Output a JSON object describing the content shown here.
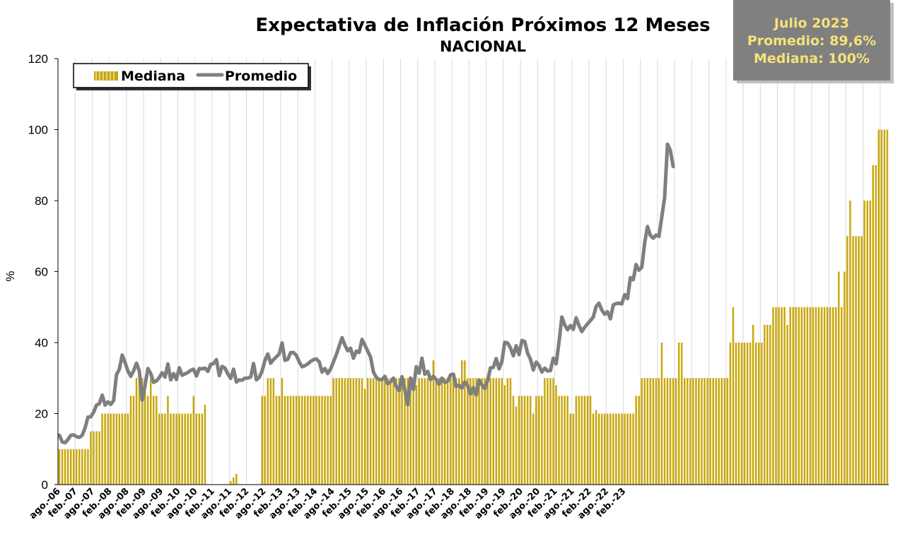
{
  "chart_data": {
    "type": "bar+line",
    "title": "Expectativa de Inflación Próximos 12 Meses",
    "subtitle": "NACIONAL",
    "ylabel": "%",
    "ylim": [
      0,
      120
    ],
    "yticks": [
      0,
      20,
      40,
      60,
      80,
      100,
      120
    ],
    "grid": "vertical",
    "legend": {
      "position": "top-left",
      "entries": [
        "Mediana",
        "Promedio"
      ]
    },
    "info_box": [
      "Julio 2023",
      "Promedio: 89,6%",
      "Mediana: 100%"
    ],
    "x_tick_labels": [
      "ago.-06",
      "feb.-07",
      "ago.-07",
      "feb.-08",
      "ago.-08",
      "feb.-09",
      "ago.-09",
      "feb.-10",
      "ago.-10",
      "feb.-11",
      "ago.-11",
      "feb.-12",
      "ago.-12",
      "feb.-13",
      "ago.-13",
      "feb.-14",
      "ago.-14",
      "feb.-15",
      "ago.-15",
      "feb.-16",
      "ago.-16",
      "feb.-17",
      "ago.-17",
      "feb.-18",
      "ago.-18",
      "feb.-19",
      "ago.-19",
      "feb.-20",
      "ago.-20",
      "feb.-21",
      "ago.-21",
      "feb.-22",
      "ago.-22",
      "feb.-23"
    ],
    "months_start": "ago.-06",
    "months_end": "jul.-23",
    "series": [
      {
        "name": "Mediana",
        "kind": "bar",
        "color": "#c9a70c",
        "values": [
          10,
          10,
          10,
          10,
          10,
          10,
          10,
          10,
          10,
          10,
          10,
          15,
          15,
          15,
          15,
          20,
          20,
          20,
          20,
          20,
          20,
          20,
          20,
          20,
          20,
          25,
          25,
          30,
          30,
          30,
          30,
          25,
          30,
          25,
          25,
          20,
          20,
          20,
          25,
          20,
          20,
          20,
          20,
          20,
          20,
          20,
          20,
          25,
          20,
          20,
          20,
          22.5,
          null,
          null,
          null,
          null,
          null,
          null,
          null,
          null,
          1,
          2,
          3,
          null,
          null,
          null,
          null,
          null,
          null,
          null,
          null,
          25,
          25,
          30,
          30,
          30,
          25,
          25,
          30,
          25,
          25,
          25,
          25,
          25,
          25,
          25,
          25,
          25,
          25,
          25,
          25,
          25,
          25,
          25,
          25,
          25,
          30,
          30,
          30,
          30,
          30,
          30,
          30,
          30,
          30,
          30,
          30,
          27,
          30,
          30,
          30,
          30,
          30,
          30,
          30,
          30,
          30,
          30,
          30,
          30,
          30,
          30,
          30,
          30,
          30,
          28,
          30,
          30,
          30,
          30,
          30,
          35,
          30,
          30,
          30,
          30,
          30,
          30,
          30,
          30,
          30,
          35,
          35,
          30,
          30,
          30,
          30,
          30,
          30,
          30,
          30,
          30,
          30,
          30,
          30,
          30,
          28,
          30,
          30,
          25,
          22,
          25,
          25,
          25,
          25,
          25,
          20,
          25,
          25,
          25,
          30,
          30,
          30,
          30,
          28,
          25,
          25,
          25,
          25,
          20,
          20,
          25,
          25,
          25,
          25,
          25,
          25,
          20,
          21,
          20,
          20,
          20,
          20,
          20,
          20,
          20,
          20,
          20,
          20,
          20,
          20,
          20,
          25,
          25,
          30,
          30,
          30,
          30,
          30,
          30,
          30,
          40,
          30,
          30,
          30,
          30,
          30,
          40,
          40,
          30,
          30,
          30,
          30,
          30,
          30,
          30,
          30,
          30,
          30,
          30,
          30,
          30,
          30,
          30,
          30,
          40,
          50,
          40,
          40,
          40,
          40,
          40,
          40,
          45,
          40,
          40,
          40,
          45,
          45,
          45,
          50,
          50,
          50,
          50,
          50,
          45,
          50,
          50,
          50,
          50,
          50,
          50,
          50,
          50,
          50,
          50,
          50,
          50,
          50,
          50,
          50,
          50,
          50,
          60,
          50,
          60,
          70,
          80,
          70,
          70,
          70,
          70,
          80,
          80,
          80,
          90,
          90,
          100,
          100,
          100,
          100
        ]
      },
      {
        "name": "Promedio",
        "kind": "line",
        "color": "#7f7f7f",
        "values": [
          13.9,
          12.0,
          11.8,
          12.7,
          13.9,
          14.0,
          13.5,
          13.3,
          13.9,
          16.0,
          19.0,
          19.1,
          20.4,
          22.4,
          22.8,
          25.2,
          22.4,
          23.3,
          22.6,
          23.7,
          31.0,
          32.5,
          36.5,
          34.4,
          32.0,
          30.5,
          32.1,
          34.2,
          32.0,
          23.8,
          28.0,
          32.7,
          31.3,
          28.8,
          29.2,
          30.2,
          31.5,
          30.3,
          34.0,
          29.5,
          31.3,
          29.6,
          32.9,
          30.8,
          31.2,
          31.6,
          32.2,
          32.5,
          30.6,
          32.7,
          32.6,
          32.8,
          31.9,
          33.9,
          34.1,
          35.2,
          30.7,
          33.3,
          32.8,
          31.2,
          29.9,
          32.5,
          28.9,
          29.5,
          29.4,
          30.0,
          30.0,
          30.3,
          34.1,
          29.5,
          30.2,
          32.0,
          35.0,
          36.8,
          34.2,
          35.2,
          36.0,
          36.8,
          39.9,
          35.0,
          35.3,
          37.2,
          37.2,
          36.4,
          34.6,
          33.2,
          33.5,
          34.0,
          34.7,
          35.2,
          35.4,
          34.6,
          31.7,
          32.7,
          31.3,
          32.6,
          34.6,
          36.6,
          39.0,
          41.4,
          39.3,
          37.7,
          38.4,
          35.6,
          37.6,
          37.2,
          40.9,
          39.3,
          37.6,
          35.9,
          31.7,
          30.2,
          29.6,
          29.6,
          30.5,
          28.4,
          29.0,
          30.0,
          27.7,
          26.5,
          30.4,
          26.7,
          22.5,
          30.0,
          26.8,
          33.2,
          31.4,
          35.6,
          31.1,
          31.9,
          29.6,
          30.5,
          29.6,
          28.3,
          30.0,
          28.8,
          29.1,
          30.9,
          31.1,
          27.6,
          28.0,
          27.2,
          28.9,
          27.9,
          25.5,
          27.3,
          25.3,
          29.4,
          28.1,
          27.1,
          29.3,
          32.9,
          33.0,
          35.5,
          32.6,
          34.7,
          40.1,
          39.9,
          38.5,
          36.3,
          39.1,
          36.6,
          40.6,
          40.3,
          37.0,
          35.3,
          32.3,
          34.5,
          33.6,
          31.7,
          32.8,
          32.0,
          32.1,
          35.6,
          34.0,
          40.1,
          47.2,
          45.0,
          43.6,
          44.8,
          43.7,
          47.0,
          44.8,
          43.1,
          44.3,
          45.3,
          46.2,
          47.2,
          50.2,
          51.1,
          49.2,
          48.0,
          48.7,
          46.7,
          50.6,
          51.0,
          51.1,
          50.9,
          53.5,
          52.4,
          58.3,
          57.7,
          62.0,
          60.4,
          61.2,
          68.1,
          72.7,
          70.2,
          69.4,
          70.3,
          69.9,
          75.4,
          80.9,
          95.9,
          94.2,
          89.6
        ]
      }
    ]
  }
}
